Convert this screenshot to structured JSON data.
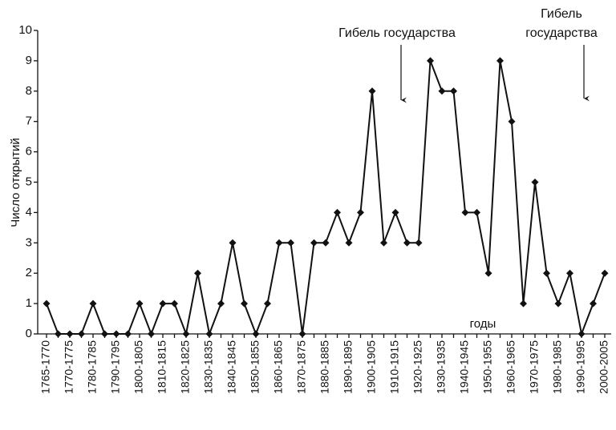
{
  "chart_data": {
    "type": "line",
    "y_label": "Число открытий",
    "x_label": "годы",
    "annotations": [
      {
        "lines": [
          "Гибель государства"
        ]
      },
      {
        "lines": [
          "Гибель",
          "государства"
        ]
      }
    ],
    "categories": [
      "1765-1770",
      null,
      "1770-1775",
      null,
      "1780-1785",
      null,
      "1790-1795",
      null,
      "1800-1805",
      null,
      "1810-1815",
      null,
      "1820-1825",
      null,
      "1830-1835",
      null,
      "1840-1845",
      null,
      "1850-1855",
      null,
      "1860-1865",
      null,
      "1870-1875",
      null,
      "1880-1885",
      null,
      "1890-1895",
      null,
      "1900-1905",
      null,
      "1910-1915",
      null,
      "1920-1925",
      null,
      "1930-1935",
      null,
      "1940-1945",
      null,
      "1950-1955",
      null,
      "1960-1965",
      null,
      "1970-1975",
      null,
      "1980-1985",
      null,
      "1990-1995",
      null,
      "2000-2005"
    ],
    "series": [
      {
        "name": "Число открытий",
        "color": "#111111",
        "values": [
          1,
          0,
          0,
          0,
          1,
          0,
          0,
          0,
          1,
          0,
          1,
          1,
          0,
          2,
          0,
          1,
          3,
          1,
          0,
          1,
          3,
          3,
          0,
          3,
          3,
          4,
          3,
          4,
          8,
          3,
          4,
          3,
          3,
          9,
          8,
          8,
          4,
          4,
          2,
          9,
          7,
          1,
          5,
          2,
          1,
          2,
          0,
          1,
          2
        ]
      }
    ],
    "ylim": [
      0,
      10
    ],
    "yticks": [
      0,
      1,
      2,
      3,
      4,
      5,
      6,
      7,
      8,
      9,
      10
    ]
  }
}
